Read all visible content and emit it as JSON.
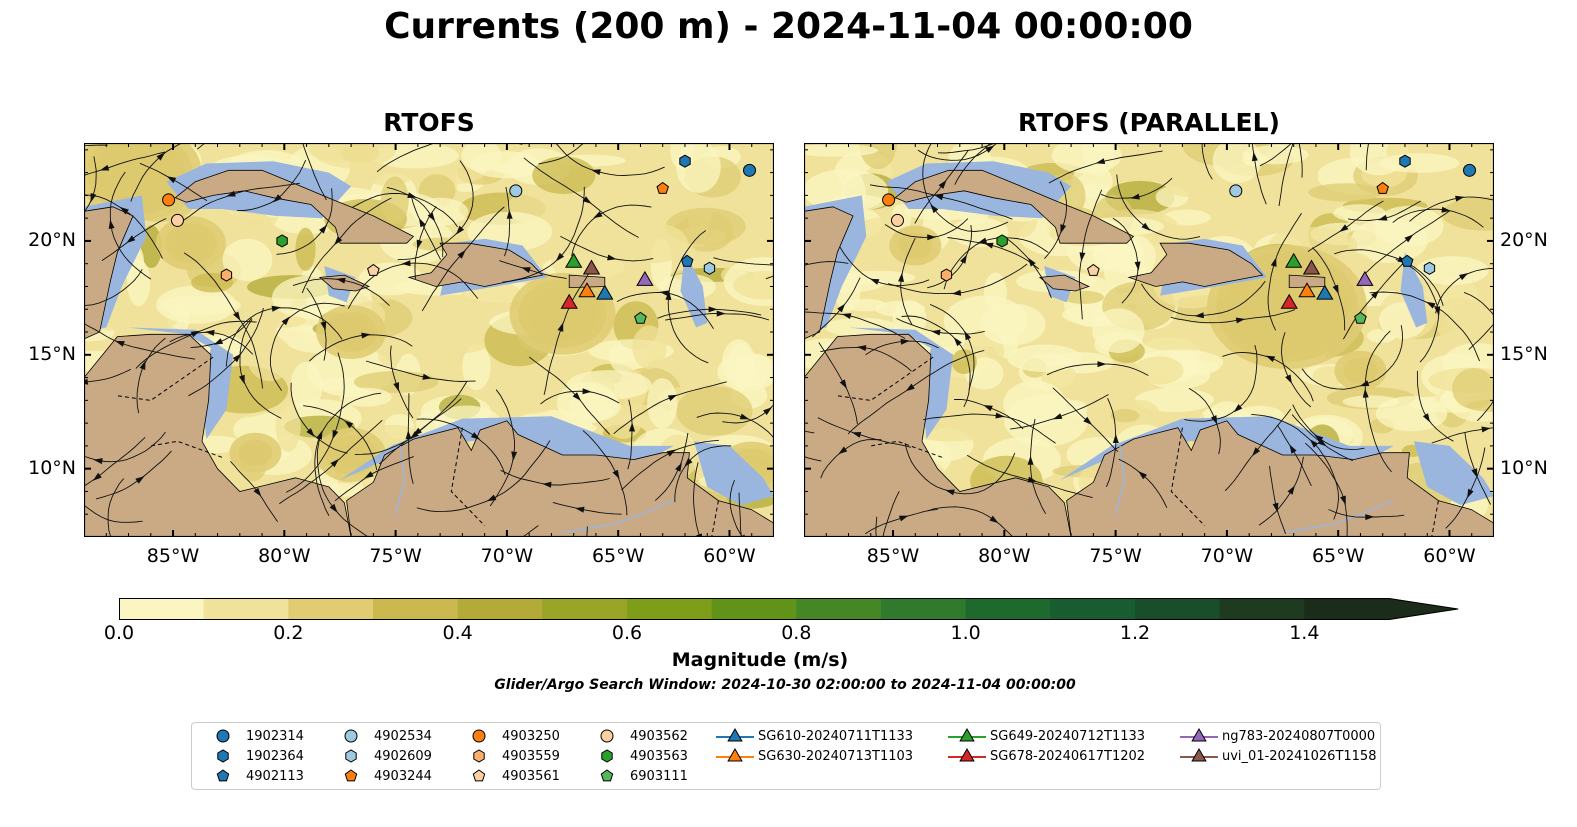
{
  "figure": {
    "title": "Currents (200 m) - 2024-11-04 00:00:00",
    "search_window": "Glider/Argo Search Window: 2024-10-30 02:00:00 to 2024-11-04 00:00:00"
  },
  "panels": [
    {
      "title": "RTOFS"
    },
    {
      "title": "RTOFS (PARALLEL)"
    }
  ],
  "colors": {
    "land": "#c9aa84",
    "shelf": "#9ab6df",
    "colormap": [
      "#fbf5c2",
      "#f0e29a",
      "#dfcc73",
      "#cbb84e",
      "#b3aa37",
      "#98a526",
      "#7e9e1a",
      "#629319",
      "#458725",
      "#2f7a2c",
      "#1e6a2e",
      "#185d30",
      "#1a4d2a",
      "#1e3b22",
      "#1b2c1a"
    ]
  },
  "chart_data": {
    "type": "heatmap",
    "quantity": "Current magnitude",
    "depth": "200 m",
    "colorbar": {
      "label": "Magnitude (m/s)",
      "range": [
        0.0,
        1.5
      ],
      "step": 0.1,
      "extend": "max",
      "ticks": [
        "0.0",
        "0.2",
        "0.4",
        "0.6",
        "0.8",
        "1.0",
        "1.2",
        "1.4"
      ]
    },
    "map_extent": {
      "lon": [
        -89,
        -58
      ],
      "lat": [
        7,
        24.3
      ]
    },
    "x_ticks": [
      "85°W",
      "80°W",
      "75°W",
      "70°W",
      "65°W",
      "60°W"
    ],
    "y_ticks": [
      "20°N",
      "15°N",
      "10°N"
    ],
    "tick_lons": [
      -85,
      -80,
      -75,
      -70,
      -65,
      -60
    ],
    "tick_lats": [
      20,
      15,
      10
    ],
    "panels": [
      {
        "model": "RTOFS",
        "floats": [
          {
            "id": "1902314",
            "lon": -59.1,
            "lat": 23.1
          },
          {
            "id": "1902364",
            "lon": -62.0,
            "lat": 23.5
          },
          {
            "id": "4902113",
            "lon": -61.9,
            "lat": 19.1
          },
          {
            "id": "4902534",
            "lon": -69.6,
            "lat": 22.2
          },
          {
            "id": "4902609",
            "lon": -60.9,
            "lat": 18.8
          },
          {
            "id": "4903244",
            "lon": -63.0,
            "lat": 22.3
          },
          {
            "id": "4903250",
            "lon": -85.2,
            "lat": 21.8
          },
          {
            "id": "4903559",
            "lon": -82.6,
            "lat": 18.5
          },
          {
            "id": "4903561",
            "lon": -76.0,
            "lat": 18.7
          },
          {
            "id": "4903562",
            "lon": -84.8,
            "lat": 20.9
          },
          {
            "id": "4903563",
            "lon": -80.1,
            "lat": 20.0
          },
          {
            "id": "6903111",
            "lon": -64.0,
            "lat": 16.6
          }
        ],
        "gliders": [
          {
            "id": "SG610-20240711T1133",
            "lon": -65.6,
            "lat": 17.6
          },
          {
            "id": "SG630-20240713T1103",
            "lon": -66.4,
            "lat": 17.7
          },
          {
            "id": "SG649-20240712T1133",
            "lon": -67.0,
            "lat": 19.0
          },
          {
            "id": "SG678-20240617T1202",
            "lon": -67.2,
            "lat": 17.2
          },
          {
            "id": "ng783-20240807T0000",
            "lon": -63.8,
            "lat": 18.2
          },
          {
            "id": "uvi_01-20241026T1158",
            "lon": -66.2,
            "lat": 18.7
          }
        ]
      },
      {
        "model": "RTOFS (PARALLEL)",
        "floats": [
          {
            "id": "1902314",
            "lon": -59.1,
            "lat": 23.1
          },
          {
            "id": "1902364",
            "lon": -62.0,
            "lat": 23.5
          },
          {
            "id": "4902113",
            "lon": -61.9,
            "lat": 19.1
          },
          {
            "id": "4902534",
            "lon": -69.6,
            "lat": 22.2
          },
          {
            "id": "4902609",
            "lon": -60.9,
            "lat": 18.8
          },
          {
            "id": "4903244",
            "lon": -63.0,
            "lat": 22.3
          },
          {
            "id": "4903250",
            "lon": -85.2,
            "lat": 21.8
          },
          {
            "id": "4903559",
            "lon": -82.6,
            "lat": 18.5
          },
          {
            "id": "4903561",
            "lon": -76.0,
            "lat": 18.7
          },
          {
            "id": "4903562",
            "lon": -84.8,
            "lat": 20.9
          },
          {
            "id": "4903563",
            "lon": -80.1,
            "lat": 20.0
          },
          {
            "id": "6903111",
            "lon": -64.0,
            "lat": 16.6
          }
        ],
        "gliders": [
          {
            "id": "SG610-20240711T1133",
            "lon": -65.6,
            "lat": 17.6
          },
          {
            "id": "SG630-20240713T1103",
            "lon": -66.4,
            "lat": 17.7
          },
          {
            "id": "SG649-20240712T1133",
            "lon": -67.0,
            "lat": 19.0
          },
          {
            "id": "SG678-20240617T1202",
            "lon": -67.2,
            "lat": 17.2
          },
          {
            "id": "ng783-20240807T0000",
            "lon": -63.8,
            "lat": 18.2
          },
          {
            "id": "uvi_01-20241026T1158",
            "lon": -66.2,
            "lat": 18.7
          }
        ]
      }
    ],
    "legend": {
      "entries": [
        {
          "label": "1902314",
          "marker": "circle",
          "color": "#1f77b4"
        },
        {
          "label": "1902364",
          "marker": "hexagon",
          "color": "#1f77b4"
        },
        {
          "label": "4902113",
          "marker": "pentagon",
          "color": "#1f77b4"
        },
        {
          "label": "4902534",
          "marker": "circle",
          "color": "#9ecae1"
        },
        {
          "label": "4902609",
          "marker": "hexagon",
          "color": "#9ecae1"
        },
        {
          "label": "4903244",
          "marker": "pentagon",
          "color": "#ff7f0e"
        },
        {
          "label": "4903250",
          "marker": "circle",
          "color": "#ff7f0e"
        },
        {
          "label": "4903559",
          "marker": "hexagon",
          "color": "#fdae6b"
        },
        {
          "label": "4903561",
          "marker": "pentagon",
          "color": "#fdd0a2"
        },
        {
          "label": "4903562",
          "marker": "circle",
          "color": "#fdd0a2"
        },
        {
          "label": "4903563",
          "marker": "hexagon",
          "color": "#2ca02c"
        },
        {
          "label": "6903111",
          "marker": "pentagon",
          "color": "#55b85a"
        },
        {
          "label": "SG610-20240711T1133",
          "marker": "triangle",
          "color": "#1f77b4"
        },
        {
          "label": "SG630-20240713T1103",
          "marker": "triangle",
          "color": "#ff7f0e"
        },
        {
          "label": "SG649-20240712T1133",
          "marker": "triangle",
          "color": "#2ca02c"
        },
        {
          "label": "SG678-20240617T1202",
          "marker": "triangle",
          "color": "#d62728"
        },
        {
          "label": "ng783-20240807T0000",
          "marker": "triangle",
          "color": "#9467bd"
        },
        {
          "label": "uvi_01-20241026T1158",
          "marker": "triangle",
          "color": "#8c564b"
        }
      ]
    }
  }
}
